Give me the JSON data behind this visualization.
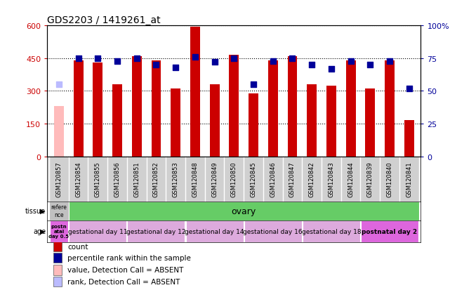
{
  "title": "GDS2203 / 1419261_at",
  "samples": [
    "GSM120857",
    "GSM120854",
    "GSM120855",
    "GSM120856",
    "GSM120851",
    "GSM120852",
    "GSM120853",
    "GSM120848",
    "GSM120849",
    "GSM120850",
    "GSM120845",
    "GSM120846",
    "GSM120847",
    "GSM120842",
    "GSM120843",
    "GSM120844",
    "GSM120839",
    "GSM120840",
    "GSM120841"
  ],
  "count_values": [
    230,
    440,
    430,
    330,
    460,
    440,
    310,
    595,
    330,
    465,
    290,
    440,
    460,
    330,
    325,
    440,
    310,
    440,
    165
  ],
  "count_absent": [
    true,
    false,
    false,
    false,
    false,
    false,
    false,
    false,
    false,
    false,
    false,
    false,
    false,
    false,
    false,
    false,
    false,
    false,
    false
  ],
  "percentile_values": [
    55,
    75,
    75,
    73,
    75,
    70,
    68,
    76,
    72,
    75,
    55,
    73,
    75,
    70,
    67,
    73,
    70,
    73,
    52
  ],
  "percentile_absent": [
    true,
    false,
    false,
    false,
    false,
    false,
    false,
    false,
    false,
    false,
    false,
    false,
    false,
    false,
    false,
    false,
    false,
    false,
    false
  ],
  "bar_color_present": "#cc0000",
  "bar_color_absent": "#ffbbbb",
  "dot_color_present": "#000099",
  "dot_color_absent": "#bbbbff",
  "ylim_left": [
    0,
    600
  ],
  "ylim_right": [
    0,
    100
  ],
  "yticks_left": [
    0,
    150,
    300,
    450,
    600
  ],
  "ytick_labels_left": [
    "0",
    "150",
    "300",
    "450",
    "600"
  ],
  "yticks_right": [
    0,
    25,
    50,
    75,
    100
  ],
  "ytick_labels_right": [
    "0",
    "25",
    "50",
    "75",
    "100%"
  ],
  "tissue_first_label": "refere\nnce",
  "tissue_first_color": "#c0c0c0",
  "tissue_second_label": "ovary",
  "tissue_second_color": "#66cc66",
  "age_groups": [
    {
      "label": "postn\natal\nday 0.5",
      "color": "#dd66dd",
      "span": 1
    },
    {
      "label": "gestational day 11",
      "color": "#ddaadd",
      "span": 3
    },
    {
      "label": "gestational day 12",
      "color": "#ddaadd",
      "span": 3
    },
    {
      "label": "gestational day 14",
      "color": "#ddaadd",
      "span": 3
    },
    {
      "label": "gestational day 16",
      "color": "#ddaadd",
      "span": 3
    },
    {
      "label": "gestational day 18",
      "color": "#ddaadd",
      "span": 3
    },
    {
      "label": "postnatal day 2",
      "color": "#dd66dd",
      "span": 3
    }
  ],
  "legend_items": [
    {
      "color": "#cc0000",
      "label": "count"
    },
    {
      "color": "#000099",
      "label": "percentile rank within the sample"
    },
    {
      "color": "#ffbbbb",
      "label": "value, Detection Call = ABSENT"
    },
    {
      "color": "#bbbbff",
      "label": "rank, Detection Call = ABSENT"
    }
  ],
  "left_tick_color": "#cc0000",
  "right_tick_color": "#000099",
  "background_color": "#ffffff",
  "bar_width": 0.5,
  "dot_size": 35,
  "xticklabel_bg": "#d0d0d0"
}
